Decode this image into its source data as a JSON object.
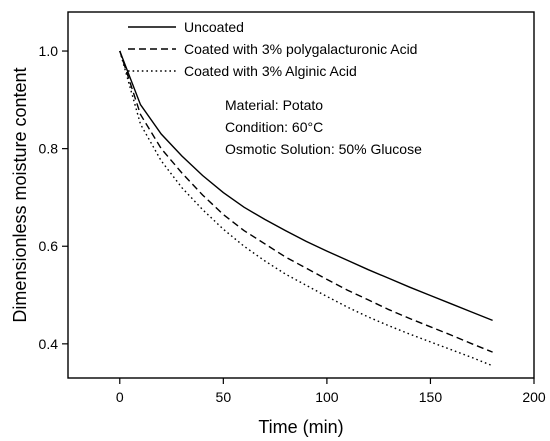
{
  "chart_data": {
    "type": "line",
    "xlabel": "Time (min)",
    "ylabel": "Dimensionless moisture content",
    "xlim": [
      -25,
      200
    ],
    "ylim": [
      0.33,
      1.08
    ],
    "xticks": [
      0,
      50,
      100,
      150,
      200
    ],
    "xtick_labels": [
      "0",
      "50",
      "100",
      "150",
      "200"
    ],
    "yticks": [
      0.4,
      0.6,
      0.8,
      1.0
    ],
    "ytick_labels": [
      "0.4",
      "0.6",
      "0.8",
      "1.0"
    ],
    "grid": false,
    "legend_position": "top-left",
    "x": [
      0,
      10,
      20,
      30,
      40,
      50,
      60,
      70,
      80,
      90,
      100,
      110,
      120,
      130,
      140,
      150,
      160,
      170,
      180
    ],
    "series": [
      {
        "name": "Uncoated",
        "style": "solid",
        "values": [
          1.0,
          0.89,
          0.83,
          0.785,
          0.745,
          0.71,
          0.68,
          0.655,
          0.632,
          0.61,
          0.59,
          0.571,
          0.552,
          0.534,
          0.516,
          0.499,
          0.482,
          0.465,
          0.448
        ]
      },
      {
        "name": "Coated with 3% polygalacturonic Acid",
        "style": "dashed",
        "values": [
          1.0,
          0.87,
          0.8,
          0.75,
          0.705,
          0.665,
          0.632,
          0.605,
          0.578,
          0.555,
          0.532,
          0.51,
          0.49,
          0.47,
          0.452,
          0.435,
          0.418,
          0.4,
          0.383
        ]
      },
      {
        "name": "Coated with 3% Alginic Acid",
        "style": "dotted",
        "values": [
          1.0,
          0.85,
          0.775,
          0.72,
          0.675,
          0.635,
          0.6,
          0.57,
          0.543,
          0.52,
          0.497,
          0.475,
          0.455,
          0.437,
          0.42,
          0.404,
          0.388,
          0.372,
          0.355
        ]
      }
    ],
    "annotations": [
      "Material: Potato",
      "Condition: 60°C",
      "Osmotic Solution: 50% Glucose"
    ]
  }
}
